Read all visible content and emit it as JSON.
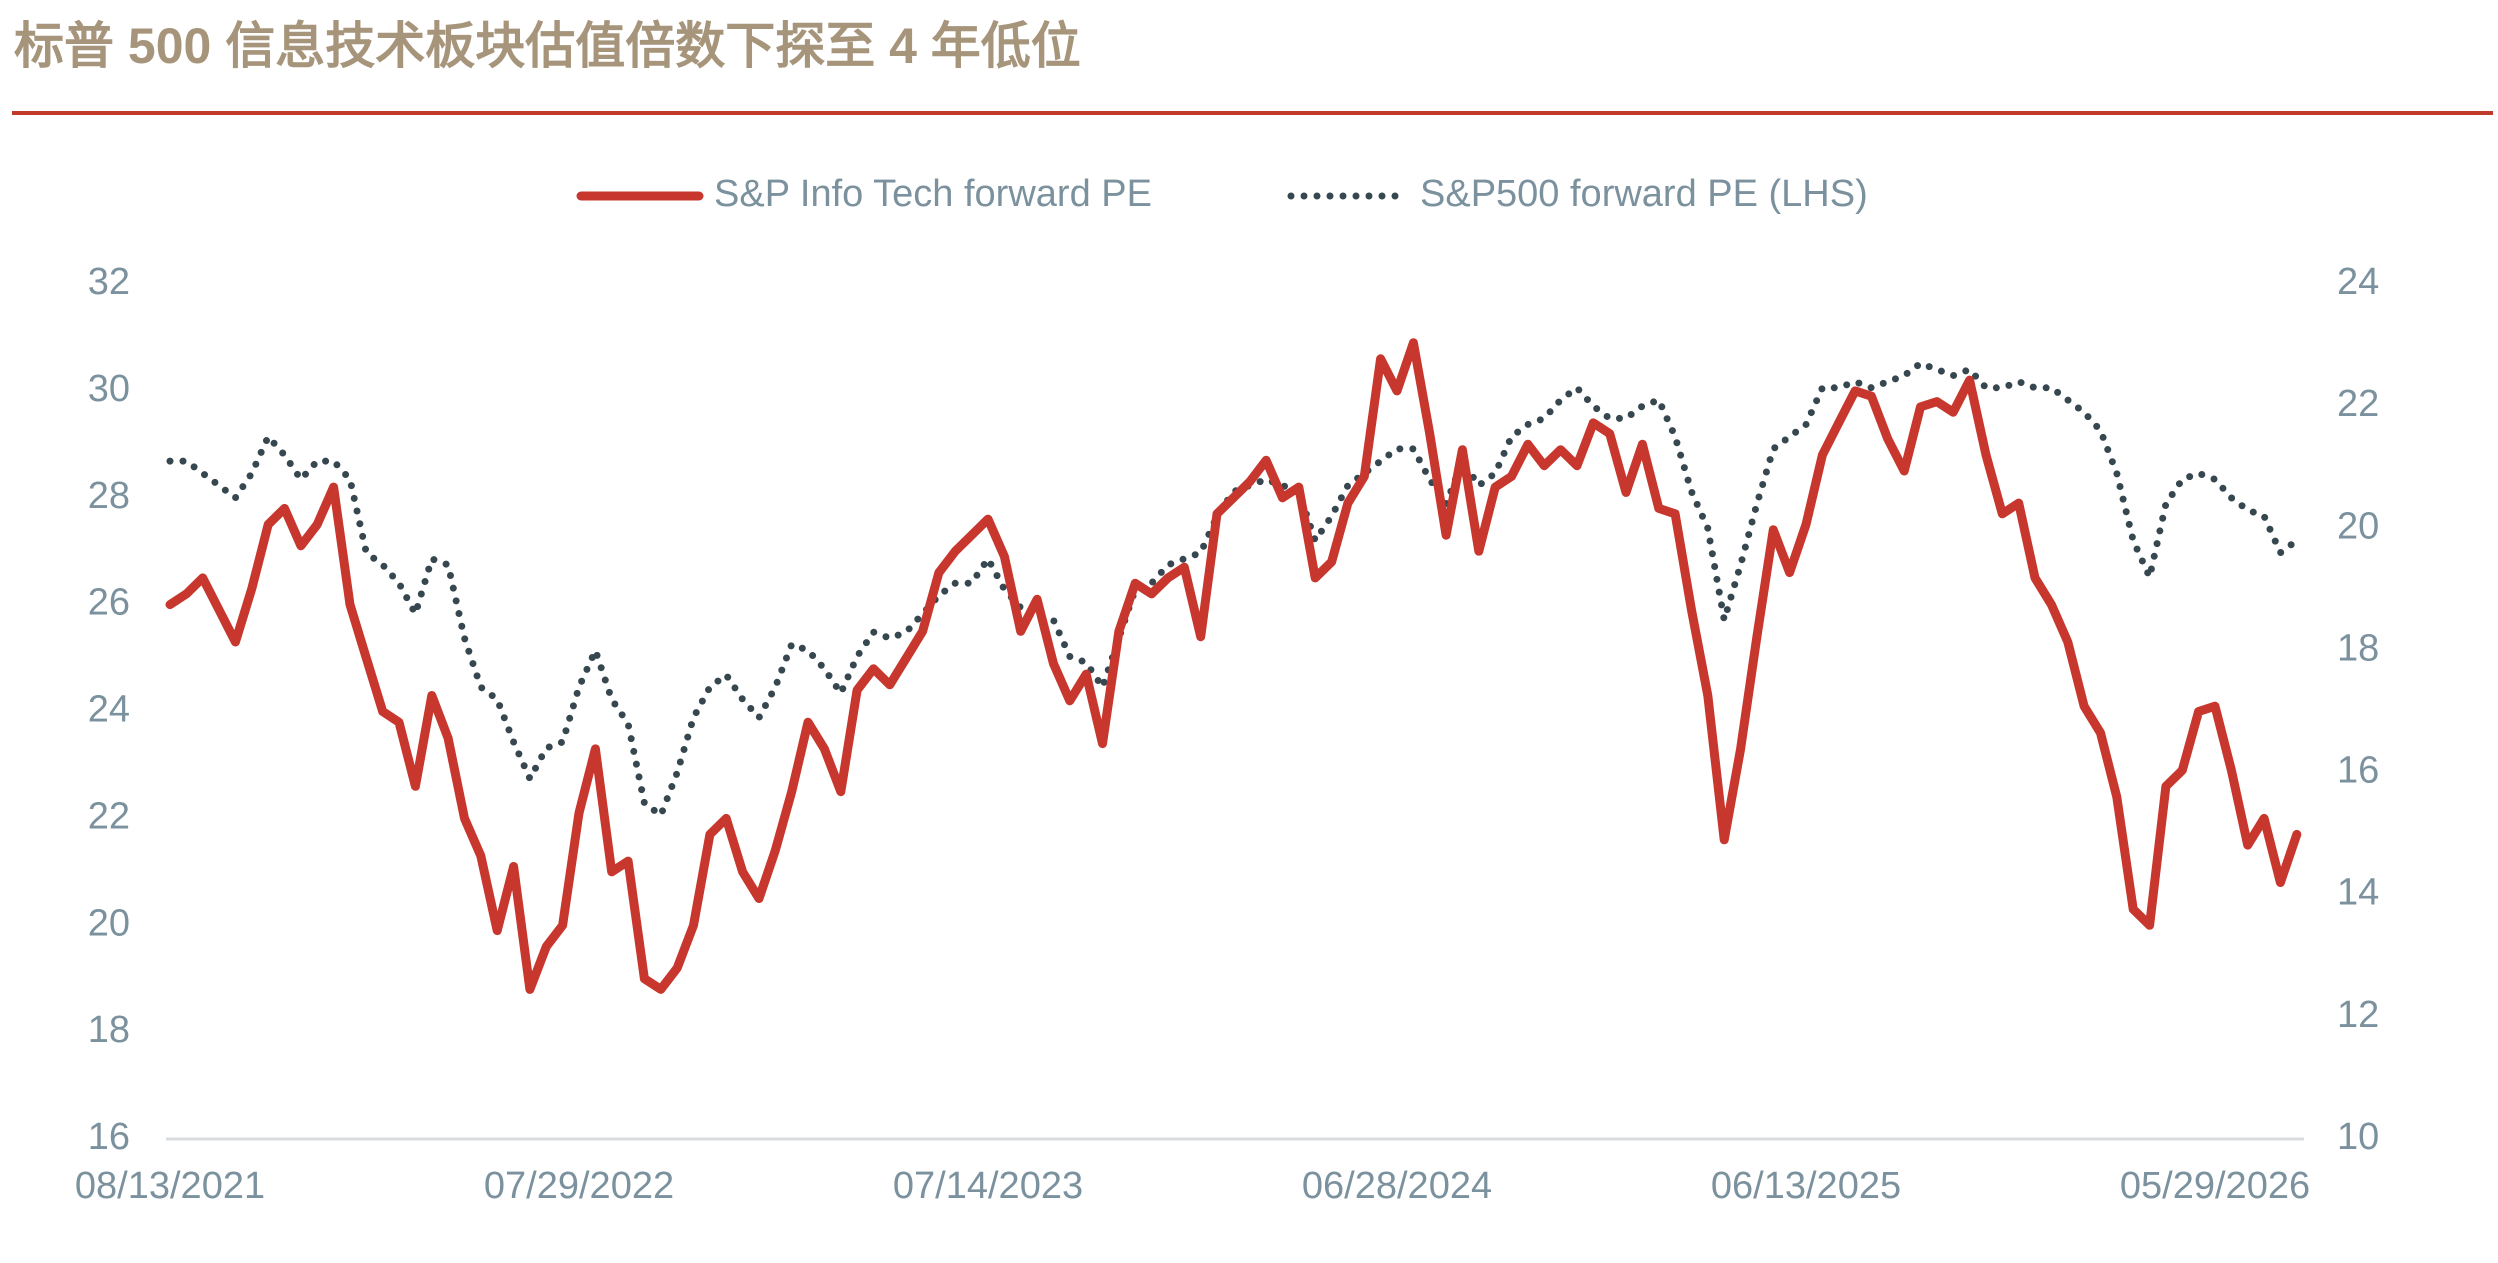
{
  "chart_data": {
    "type": "line",
    "title": "标普 500 信息技术板块估值倍数下探至 4 年低位",
    "categories": [
      "08/13/2021",
      null,
      null,
      null,
      null,
      null,
      null,
      null,
      null,
      null,
      null,
      null,
      null,
      null,
      null,
      null,
      null,
      null,
      null,
      null,
      null,
      null,
      null,
      null,
      null,
      "07/29/2022",
      null,
      null,
      null,
      null,
      null,
      null,
      null,
      null,
      null,
      null,
      null,
      null,
      null,
      null,
      null,
      null,
      null,
      null,
      null,
      null,
      null,
      null,
      null,
      null,
      "07/14/2023",
      null,
      null,
      null,
      null,
      null,
      null,
      null,
      null,
      null,
      null,
      null,
      null,
      null,
      null,
      null,
      null,
      null,
      null,
      null,
      null,
      null,
      null,
      null,
      null,
      "06/28/2024",
      null,
      null,
      null,
      null,
      null,
      null,
      null,
      null,
      null,
      null,
      null,
      null,
      null,
      null,
      null,
      null,
      null,
      null,
      null,
      null,
      null,
      null,
      null,
      null,
      "06/13/2025",
      null,
      null,
      null,
      null,
      null,
      null,
      null,
      null,
      null,
      null,
      null,
      null,
      null,
      null,
      null,
      null,
      null,
      null,
      null,
      null,
      null,
      null,
      null,
      null,
      "05/29/2026",
      null,
      null,
      null,
      null,
      null
    ],
    "series": [
      {
        "name": "S&P Info Tech forward PE",
        "color": "#c8372d",
        "axis": "y",
        "style": "solid",
        "values": [
          26.0,
          26.2,
          26.5,
          25.9,
          25.3,
          26.3,
          27.5,
          27.8,
          27.1,
          27.5,
          28.2,
          26.0,
          25.0,
          24.0,
          23.8,
          22.6,
          24.3,
          23.5,
          22.0,
          21.3,
          19.9,
          21.1,
          18.8,
          19.6,
          20.0,
          22.1,
          23.3,
          21.0,
          21.2,
          19.0,
          18.8,
          19.2,
          20.0,
          21.7,
          22.0,
          21.0,
          20.5,
          21.4,
          22.5,
          23.8,
          23.3,
          22.5,
          24.4,
          24.8,
          24.5,
          25.0,
          25.5,
          26.6,
          27.0,
          27.3,
          27.6,
          26.9,
          25.5,
          26.1,
          24.9,
          24.2,
          24.7,
          23.4,
          25.5,
          26.4,
          26.2,
          26.5,
          26.7,
          25.4,
          27.7,
          28.0,
          28.3,
          28.7,
          28.0,
          28.2,
          26.5,
          26.8,
          27.9,
          28.4,
          30.6,
          30.0,
          30.9,
          29.2,
          27.3,
          28.9,
          27.0,
          28.2,
          28.4,
          29.0,
          28.6,
          28.9,
          28.6,
          29.4,
          29.2,
          28.1,
          29.0,
          27.8,
          27.7,
          25.9,
          24.3,
          21.6,
          23.3,
          25.4,
          27.4,
          26.6,
          27.5,
          28.8,
          29.4,
          30.0,
          29.9,
          29.1,
          28.5,
          29.7,
          29.8,
          29.6,
          30.2,
          28.8,
          27.7,
          27.9,
          26.5,
          26.0,
          25.3,
          24.1,
          23.6,
          22.4,
          20.3,
          20.0,
          22.6,
          22.9,
          24.0,
          24.1,
          22.9,
          21.5,
          22.0,
          20.8,
          21.7
        ]
      },
      {
        "name": "S&P500 forward PE (LHS)",
        "color": "#37474f",
        "axis": "y2",
        "style": "dotted",
        "values": [
          21.1,
          21.1,
          20.9,
          20.7,
          20.5,
          20.9,
          21.5,
          21.2,
          20.8,
          21.1,
          21.1,
          20.8,
          19.6,
          19.4,
          19.1,
          18.6,
          19.5,
          19.4,
          18.2,
          17.4,
          17.2,
          16.5,
          15.9,
          16.4,
          16.5,
          17.4,
          18.0,
          17.2,
          16.8,
          15.5,
          15.3,
          16.0,
          16.9,
          17.4,
          17.6,
          17.2,
          16.9,
          17.4,
          18.1,
          18.0,
          17.7,
          17.3,
          17.9,
          18.3,
          18.2,
          18.3,
          18.6,
          18.9,
          19.1,
          19.1,
          19.5,
          19.0,
          18.7,
          18.5,
          18.5,
          17.9,
          17.8,
          17.4,
          18.2,
          19.0,
          19.1,
          19.4,
          19.5,
          19.6,
          20.2,
          20.6,
          20.7,
          20.8,
          20.7,
          20.6,
          19.8,
          20.2,
          20.7,
          20.9,
          21.1,
          21.3,
          21.3,
          20.8,
          20.4,
          21.1,
          20.7,
          20.9,
          21.5,
          21.7,
          21.8,
          22.1,
          22.3,
          22.0,
          21.8,
          21.8,
          22.0,
          22.1,
          21.5,
          20.6,
          20.0,
          18.5,
          19.4,
          20.4,
          21.3,
          21.5,
          21.7,
          22.3,
          22.3,
          22.4,
          22.3,
          22.4,
          22.5,
          22.7,
          22.6,
          22.5,
          22.6,
          22.3,
          22.3,
          22.4,
          22.3,
          22.3,
          22.1,
          21.9,
          21.6,
          20.9,
          19.8,
          19.2,
          20.4,
          20.8,
          20.9,
          20.8,
          20.5,
          20.3,
          20.2,
          19.6,
          19.8
        ]
      }
    ],
    "ylim": [
      16,
      32
    ],
    "yticks": [
      16,
      18,
      20,
      22,
      24,
      26,
      28,
      30,
      32
    ],
    "y2lim": [
      10,
      24
    ],
    "y2ticks": [
      10,
      12,
      14,
      16,
      18,
      20,
      22,
      24
    ],
    "legend": "top"
  }
}
